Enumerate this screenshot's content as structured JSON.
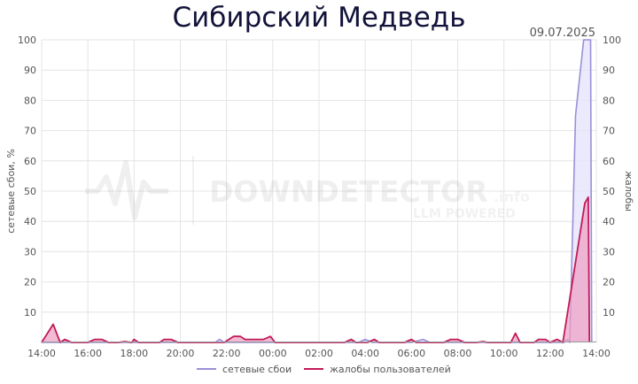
{
  "chart_data": {
    "type": "line",
    "title": "Сибирский Медведь",
    "date_label": "09.07.2025",
    "ylabel_left": "сетевые сбои, %",
    "ylabel_right": "жалобы",
    "ylim": [
      0,
      100
    ],
    "y_ticks": [
      "10",
      "20",
      "30",
      "40",
      "50",
      "60",
      "70",
      "80",
      "90",
      "100"
    ],
    "x_range_hours": [
      14,
      38
    ],
    "x_ticks": [
      "14:00",
      "16:00",
      "18:00",
      "20:00",
      "22:00",
      "00:00",
      "02:00",
      "04:00",
      "06:00",
      "08:00",
      "10:00",
      "12:00",
      "14:00"
    ],
    "grid": true,
    "legend_position": "bottom",
    "watermark": "DOWNDETECTOR.info LLM POWERED",
    "series": [
      {
        "name": "сетевые сбои",
        "color": "#9a8fd8",
        "fill": "#e4e2fb",
        "points": [
          [
            14,
            0
          ],
          [
            20,
            0
          ],
          [
            21.5,
            0
          ],
          [
            21.7,
            1
          ],
          [
            21.9,
            0
          ],
          [
            26,
            0
          ],
          [
            27.7,
            0
          ],
          [
            28,
            1
          ],
          [
            28.3,
            0
          ],
          [
            30,
            0
          ],
          [
            30.5,
            1
          ],
          [
            30.8,
            0
          ],
          [
            36.2,
            0
          ],
          [
            36.6,
            0
          ],
          [
            36.75,
            1
          ],
          [
            36.85,
            0
          ],
          [
            37.1,
            75
          ],
          [
            37.45,
            100
          ],
          [
            37.75,
            100
          ],
          [
            37.8,
            0
          ]
        ]
      },
      {
        "name": "жалобы пользователей",
        "color": "#c21a57",
        "fill": "#ee9cc3",
        "points": [
          [
            14,
            0
          ],
          [
            14.5,
            6
          ],
          [
            14.8,
            0
          ],
          [
            15,
            1
          ],
          [
            15.3,
            0
          ],
          [
            16,
            0
          ],
          [
            16.3,
            1
          ],
          [
            16.6,
            1
          ],
          [
            16.9,
            0
          ],
          [
            17.3,
            0
          ],
          [
            17.6,
            0.3
          ],
          [
            17.9,
            0
          ],
          [
            18,
            1
          ],
          [
            18.2,
            0
          ],
          [
            19.1,
            0
          ],
          [
            19.3,
            1
          ],
          [
            19.6,
            1
          ],
          [
            19.9,
            0
          ],
          [
            21.9,
            0
          ],
          [
            22.3,
            2
          ],
          [
            22.6,
            2
          ],
          [
            22.8,
            1
          ],
          [
            23.6,
            1
          ],
          [
            23.9,
            2
          ],
          [
            24.1,
            0
          ],
          [
            27.1,
            0
          ],
          [
            27.4,
            1
          ],
          [
            27.6,
            0
          ],
          [
            28.1,
            0
          ],
          [
            28.4,
            1
          ],
          [
            28.6,
            0
          ],
          [
            29.7,
            0
          ],
          [
            30,
            1
          ],
          [
            30.2,
            0
          ],
          [
            31.4,
            0
          ],
          [
            31.7,
            1
          ],
          [
            32,
            1
          ],
          [
            32.3,
            0
          ],
          [
            32.8,
            0
          ],
          [
            33.1,
            0.3
          ],
          [
            33.3,
            0
          ],
          [
            34.3,
            0
          ],
          [
            34.5,
            3
          ],
          [
            34.7,
            0
          ],
          [
            35.3,
            0
          ],
          [
            35.5,
            1
          ],
          [
            35.8,
            1
          ],
          [
            36,
            0
          ],
          [
            36.3,
            1
          ],
          [
            36.55,
            0
          ],
          [
            37.5,
            46
          ],
          [
            37.65,
            48
          ],
          [
            37.7,
            0
          ]
        ]
      }
    ]
  }
}
